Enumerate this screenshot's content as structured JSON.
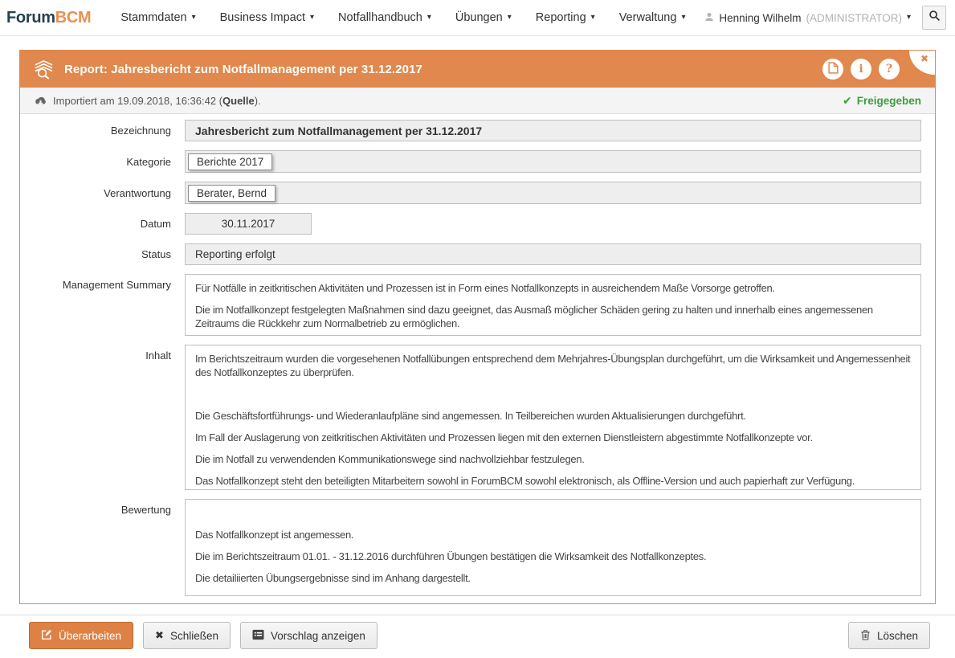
{
  "glyphs": {
    "caret_down": "▾",
    "close": "✖",
    "check": "✔",
    "info": "i",
    "help": "?"
  },
  "colors": {
    "accent_orange": "#e0884d",
    "released_green": "#3c9e3c"
  },
  "nav": {
    "logo_part1": "Forum",
    "logo_part2": "BCM",
    "items": [
      {
        "label": "Stammdaten"
      },
      {
        "label": "Business Impact"
      },
      {
        "label": "Notfallhandbuch"
      },
      {
        "label": "Übungen"
      },
      {
        "label": "Reporting"
      },
      {
        "label": "Verwaltung"
      }
    ],
    "user_name": "Henning Wilhelm",
    "user_role": "(ADMINISTRATOR)"
  },
  "panel": {
    "title": "Report: Jahresbericht zum Notfallmanagement per 31.12.2017",
    "info_bar": {
      "imported_prefix": "Importiert am 19.09.2018, 16:36:42 (",
      "source_label": "Quelle",
      "imported_suffix": ").",
      "released_label": "Freigegeben"
    },
    "form": {
      "bezeichnung": {
        "label": "Bezeichnung",
        "value": "Jahresbericht zum Notfallmanagement per 31.12.2017"
      },
      "kategorie": {
        "label": "Kategorie",
        "value": "Berichte 2017"
      },
      "verantwortung": {
        "label": "Verantwortung",
        "value": "Berater, Bernd"
      },
      "datum": {
        "label": "Datum",
        "value": "30.11.2017"
      },
      "status": {
        "label": "Status",
        "value": "Reporting erfolgt"
      },
      "management_summary": {
        "label": "Management Summary",
        "paragraphs": [
          "Für Notfälle in zeitkritischen Aktivitäten und Prozessen ist in Form eines Notfallkonzepts in ausreichendem Maße Vorsorge getroffen.",
          "Die im Notfallkonzept festgelegten Maßnahmen sind dazu geeignet, das Ausmaß möglicher Schäden gering zu halten und innerhalb eines angemessenen Zeitraums die Rückkehr zum Normalbetrieb zu ermöglichen."
        ]
      },
      "inhalt": {
        "label": "Inhalt",
        "paragraphs": [
          "Im Berichtszeitraum wurden die vorgesehenen Notfallübungen entsprechend dem Mehrjahres-Übungsplan durchgeführt, um die Wirksamkeit und Angemessenheit des Notfallkonzeptes zu überprüfen.",
          "",
          "Die Geschäftsfortführungs- und Wiederanlaufpläne sind angemessen. In Teilbereichen wurden Aktualisierungen durchgeführt.",
          "Im Fall der Auslagerung von zeitkritischen Aktivitäten und Prozessen liegen mit den externen Dienstleistern abgestimmte Notfallkonzepte vor.",
          "Die im Notfall zu verwendenden Kommunikationswege sind nachvollziehbar festzulegen.",
          "Das Notfallkonzept steht den beteiligten Mitarbeitern sowohl in ForumBCM sowohl elektronisch, als Offline-Version und auch papierhaft zur Verfügung."
        ]
      },
      "bewertung": {
        "label": "Bewertung",
        "paragraphs": [
          "",
          "Das Notfallkonzept ist angemessen.",
          "Die im Berichtszeitraum 01.01. - 31.12.2016 durchführen Übungen bestätigen die Wirksamkeit des Notfallkonzeptes.",
          "Die detailiierten Übungsergebnisse sind im Anhang dargestellt."
        ]
      }
    }
  },
  "footer": {
    "buttons": [
      {
        "label": "Überarbeiten"
      },
      {
        "label": "Schließen"
      },
      {
        "label": "Vorschlag anzeigen"
      },
      {
        "label": "Löschen"
      }
    ]
  }
}
